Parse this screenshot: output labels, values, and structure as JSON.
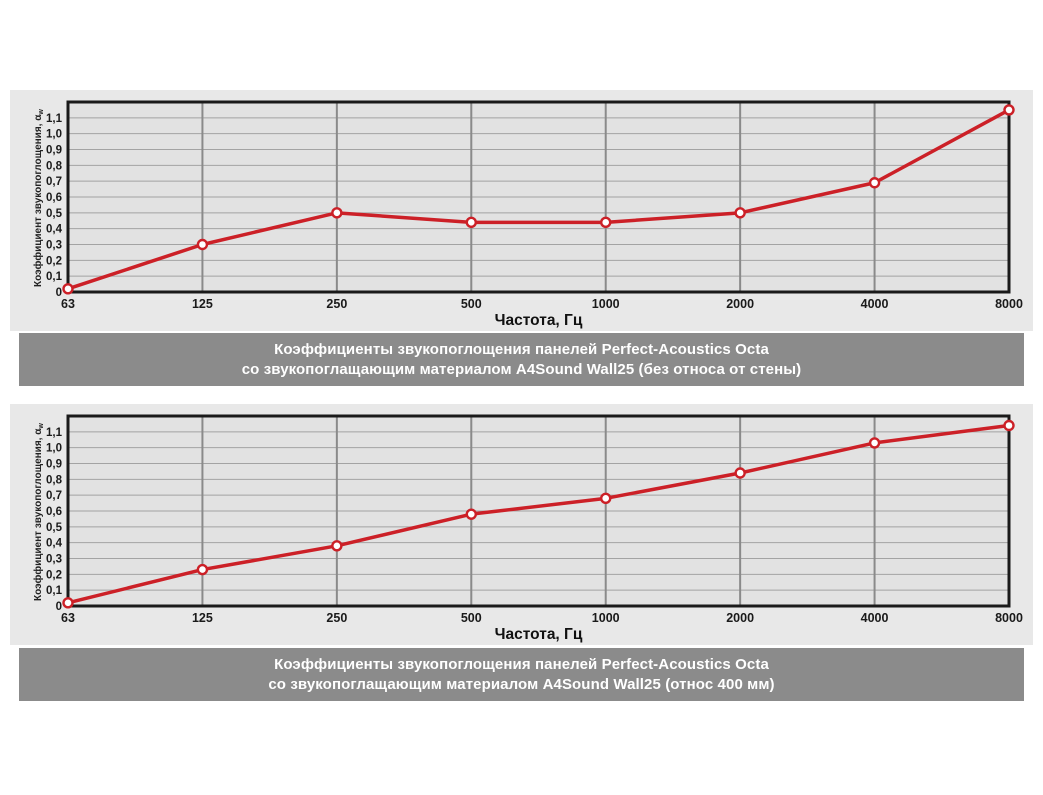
{
  "colors": {
    "accent_red": "#cc2027",
    "caption_bar_bg": "#8b8b8b",
    "caption_text": "#ffffff",
    "panel_bg": "#e8e8e8",
    "plot_bg": "#e2e2e2",
    "grid_h": "#a3a3a3",
    "grid_v": "#8a8a8a",
    "frame": "#1a1a1a",
    "tick_text": "#1a1a1a"
  },
  "chart_data": [
    {
      "type": "line",
      "categories": [
        "63",
        "125",
        "250",
        "500",
        "1000",
        "2000",
        "4000",
        "8000"
      ],
      "values": [
        0.02,
        0.3,
        0.5,
        0.44,
        0.44,
        0.5,
        0.69,
        1.15
      ],
      "xlabel": "Частота, Гц",
      "ylabel": "Коэффициент звукопоглощения, α",
      "ylabel_sub": "w",
      "ylim": [
        0,
        1.2
      ],
      "ytick_labels": [
        "0",
        "0,1",
        "0,2",
        "0,3",
        "0,4",
        "0,5",
        "0,6",
        "0,7",
        "0,8",
        "0,9",
        "1,0",
        "1,1"
      ],
      "grid": true,
      "legend": "none",
      "line_color": "#cc2027",
      "marker": "open-circle",
      "caption_line1": "Коэффициенты звукопоглощения панелей Perfect-Acoustics Octa",
      "caption_line2": "со звукопоглащающим материалом A4Sound Wall25 (без относа от стены)"
    },
    {
      "type": "line",
      "categories": [
        "63",
        "125",
        "250",
        "500",
        "1000",
        "2000",
        "4000",
        "8000"
      ],
      "values": [
        0.02,
        0.23,
        0.38,
        0.58,
        0.68,
        0.84,
        1.03,
        1.14
      ],
      "xlabel": "Частота, Гц",
      "ylabel": "Коэффициент звукопоглощения, α",
      "ylabel_sub": "w",
      "ylim": [
        0,
        1.2
      ],
      "ytick_labels": [
        "0",
        "0,1",
        "0,2",
        "0,3",
        "0,4",
        "0,5",
        "0,6",
        "0,7",
        "0,8",
        "0,9",
        "1,0",
        "1,1"
      ],
      "grid": true,
      "legend": "none",
      "line_color": "#cc2027",
      "marker": "open-circle",
      "caption_line1": "Коэффициенты звукопоглощения панелей Perfect-Acoustics Octa",
      "caption_line2": "со звукопоглащающим материалом A4Sound Wall25 (относ 400 мм)"
    }
  ]
}
